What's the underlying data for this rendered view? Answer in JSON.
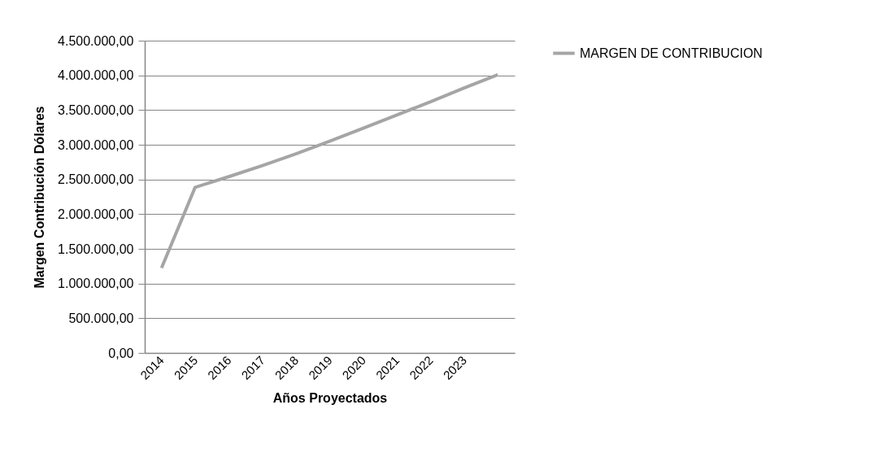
{
  "chart_data": {
    "type": "line",
    "xlabel": "Años Proyectados",
    "ylabel": "Margen Contribución Dólares",
    "categories": [
      "2014",
      "2015",
      "2016",
      "2017",
      "2018",
      "2019",
      "2020",
      "2021",
      "2022",
      "2023",
      null
    ],
    "series": [
      {
        "name": "MARGEN DE CONTRIBUCION",
        "color": "#a5a5a5",
        "values": [
          1225000,
          2387000,
          2540000,
          2700000,
          2870000,
          3050000,
          3240000,
          3430000,
          3620000,
          3820000,
          4010000
        ]
      }
    ],
    "ylim": [
      0,
      4500000
    ],
    "yticks": [
      {
        "value": 0,
        "label": "0,00"
      },
      {
        "value": 500000,
        "label": "500.000,00"
      },
      {
        "value": 1000000,
        "label": "1.000.000,00"
      },
      {
        "value": 1500000,
        "label": "1.500.000,00"
      },
      {
        "value": 2000000,
        "label": "2.000.000,00"
      },
      {
        "value": 2500000,
        "label": "2.500.000,00"
      },
      {
        "value": 3000000,
        "label": "3.000.000,00"
      },
      {
        "value": 3500000,
        "label": "3.500.000,00"
      },
      {
        "value": 4000000,
        "label": "4.000.000,00"
      },
      {
        "value": 4500000,
        "label": "4.500.000,00"
      }
    ],
    "grid": "y",
    "legend": "right",
    "marker": "none",
    "line_style": "solid"
  }
}
